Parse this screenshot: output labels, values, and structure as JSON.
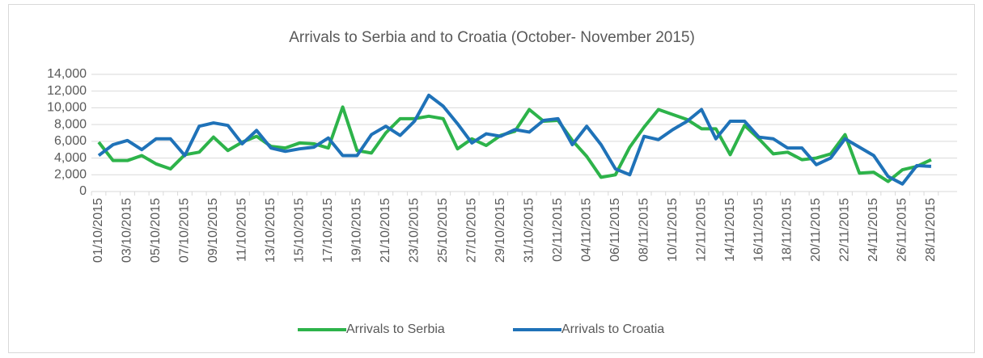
{
  "chart_data": {
    "type": "line",
    "title": "Arrivals to Serbia and to Croatia (October- November 2015)",
    "categories": [
      "01/10/2015",
      null,
      "03/10/2015",
      null,
      "05/10/2015",
      null,
      "07/10/2015",
      null,
      "09/10/2015",
      null,
      "11/10/2015",
      null,
      "13/10/2015",
      null,
      "15/10/2015",
      null,
      "17/10/2015",
      null,
      "19/10/2015",
      null,
      "21/10/2015",
      null,
      "23/10/2015",
      null,
      "25/10/2015",
      null,
      "27/10/2015",
      null,
      "29/10/2015",
      null,
      "31/10/2015",
      null,
      "02/11/2015",
      null,
      "04/11/2015",
      null,
      "06/11/2015",
      null,
      "08/11/2015",
      null,
      "10/11/2015",
      null,
      "12/11/2015",
      null,
      "14/11/2015",
      null,
      "16/11/2015",
      null,
      "18/11/2015",
      null,
      "20/11/2015",
      null,
      "22/11/2015",
      null,
      "24/11/2015",
      null,
      "26/11/2015",
      null,
      "28/11/2015"
    ],
    "series": [
      {
        "name": "Arrivals to Serbia",
        "color": "#2db34a",
        "values": [
          5900,
          3700,
          3700,
          4300,
          3300,
          2700,
          4400,
          4700,
          6500,
          4900,
          5900,
          6600,
          5400,
          5200,
          5800,
          5700,
          5200,
          10100,
          4900,
          4600,
          7000,
          8700,
          8700,
          9000,
          8700,
          5100,
          6300,
          5500,
          6700,
          7200,
          9800,
          8400,
          8500,
          6100,
          4200,
          1700,
          2000,
          5300,
          7700,
          9800,
          9200,
          8600,
          7500,
          7500,
          4400,
          7900,
          6300,
          4500,
          4700,
          3800,
          4000,
          4500,
          6800,
          2200,
          2300,
          1200,
          2600,
          3000,
          3800
        ]
      },
      {
        "name": "Arrivals to Croatia",
        "color": "#1f72b8",
        "values": [
          4300,
          5600,
          6100,
          5000,
          6300,
          6300,
          4300,
          7800,
          8200,
          7900,
          5700,
          7300,
          5200,
          4800,
          5100,
          5300,
          6400,
          4300,
          4300,
          6800,
          7800,
          6700,
          8400,
          11500,
          10200,
          8100,
          5800,
          6900,
          6600,
          7400,
          7100,
          8500,
          8700,
          5600,
          7800,
          5600,
          2700,
          2000,
          6600,
          6200,
          7400,
          8400,
          9800,
          6300,
          8400,
          8400,
          6500,
          6300,
          5200,
          5200,
          3200,
          4000,
          6300,
          5300,
          4300,
          1800,
          900,
          3100,
          3000
        ]
      }
    ],
    "ylim": [
      0,
      14000
    ],
    "yticks": [
      0,
      {
        "value": 2000,
        "label": "2,000"
      },
      {
        "value": 4000,
        "label": "4,000"
      },
      {
        "value": 6000,
        "label": "6,000"
      },
      {
        "value": 8000,
        "label": "8,000"
      },
      {
        "value": 10000,
        "label": "10,000"
      },
      {
        "value": 12000,
        "label": "12,000"
      },
      {
        "value": 14000,
        "label": "14,000"
      }
    ],
    "grid": true,
    "legend": "bottom"
  }
}
